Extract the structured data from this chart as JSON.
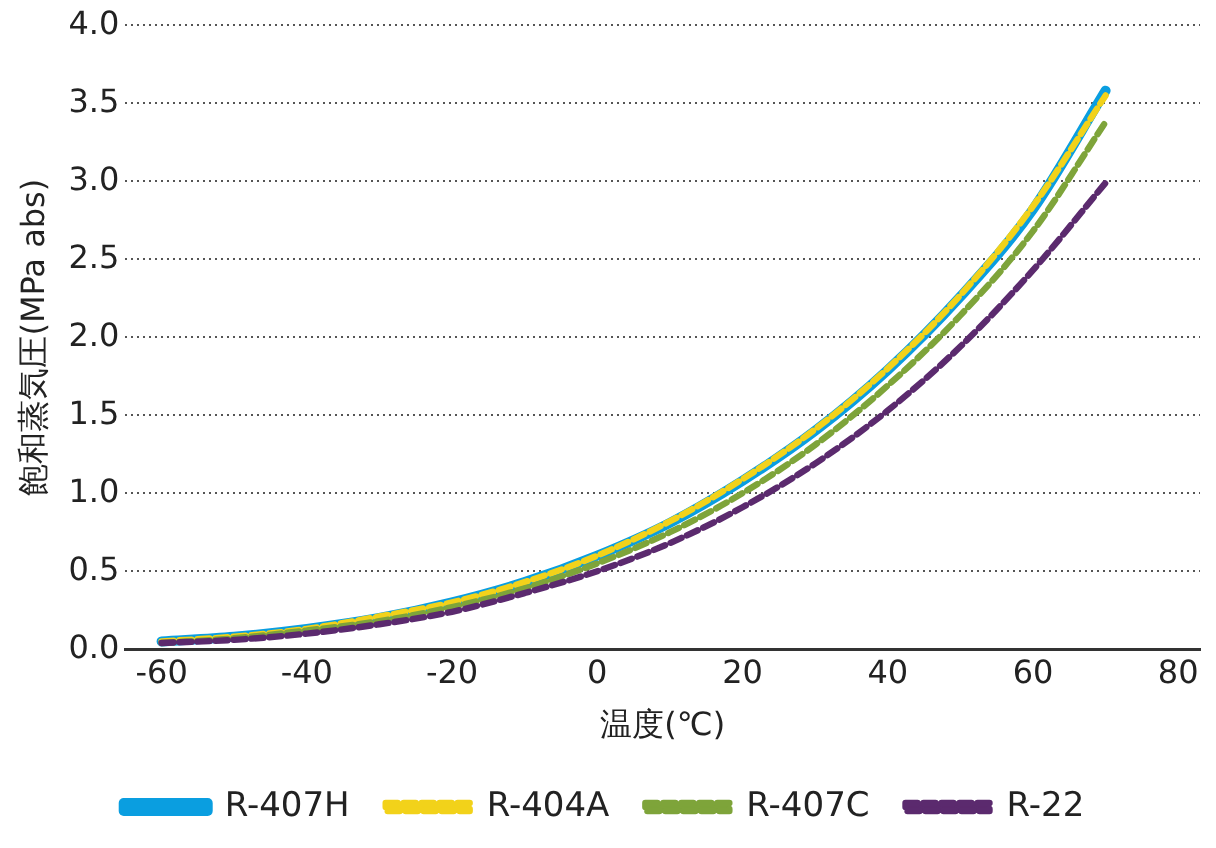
{
  "chart_data": {
    "type": "line",
    "xlabel": "温度(℃)",
    "ylabel": "飽和蒸気圧(MPa abs)",
    "x": [
      -60,
      -50,
      -40,
      -30,
      -20,
      -10,
      0,
      10,
      20,
      30,
      40,
      50,
      60,
      70
    ],
    "series": [
      {
        "name": "R-407H",
        "color": "#0a9ee0",
        "line_style": "solid",
        "values": [
          0.05,
          0.08,
          0.13,
          0.2,
          0.3,
          0.43,
          0.6,
          0.81,
          1.08,
          1.4,
          1.79,
          2.26,
          2.82,
          3.58
        ]
      },
      {
        "name": "R-404A",
        "color": "#f2d21a",
        "line_style": "dashed",
        "values": [
          0.05,
          0.08,
          0.13,
          0.21,
          0.3,
          0.43,
          0.6,
          0.82,
          1.09,
          1.41,
          1.8,
          2.27,
          2.84,
          3.55
        ]
      },
      {
        "name": "R-407C",
        "color": "#7ea43a",
        "line_style": "dashed",
        "values": [
          0.04,
          0.07,
          0.12,
          0.18,
          0.27,
          0.39,
          0.55,
          0.75,
          1.0,
          1.31,
          1.69,
          2.14,
          2.68,
          3.38
        ]
      },
      {
        "name": "R-22",
        "color": "#5b2a6e",
        "line_style": "dashed",
        "values": [
          0.04,
          0.06,
          0.1,
          0.16,
          0.24,
          0.36,
          0.5,
          0.68,
          0.91,
          1.19,
          1.53,
          1.94,
          2.43,
          2.99
        ]
      }
    ],
    "xlim": [
      -65,
      83
    ],
    "xticks": [
      -60,
      -40,
      -20,
      0,
      20,
      40,
      60,
      80
    ],
    "ylim": [
      0,
      4
    ],
    "yticks": [
      {
        "value": 0,
        "label": "0.0"
      },
      {
        "value": 0.5,
        "label": "0.5"
      },
      {
        "value": 1,
        "label": "1.0"
      },
      {
        "value": 1.5,
        "label": "1.5"
      },
      {
        "value": 2,
        "label": "2.0"
      },
      {
        "value": 2.5,
        "label": "2.5"
      },
      {
        "value": 3,
        "label": "3.0"
      },
      {
        "value": 3.5,
        "label": "3.5"
      },
      {
        "value": 4,
        "label": "4.0"
      }
    ],
    "grid": "y",
    "legend": "bottom",
    "marker": "none"
  }
}
